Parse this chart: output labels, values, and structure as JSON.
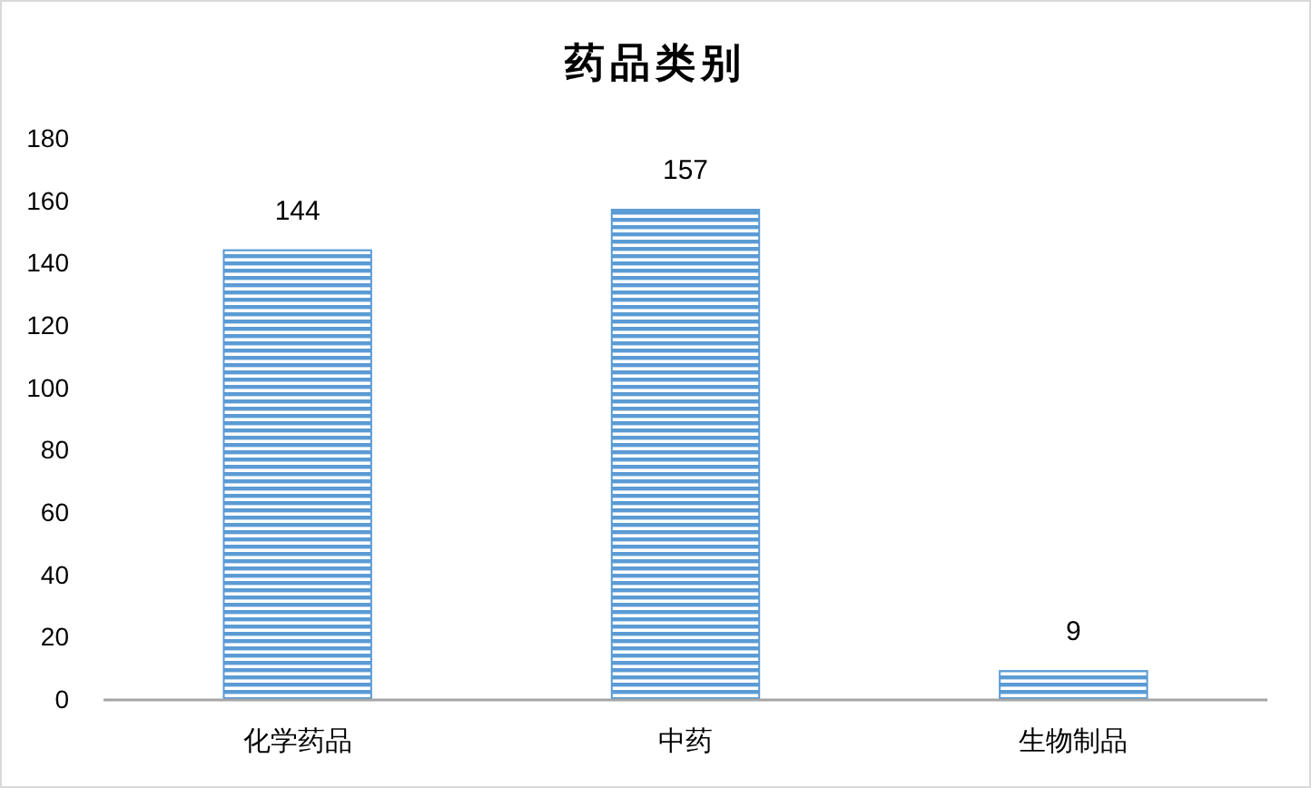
{
  "chart_data": {
    "type": "bar",
    "title": "药品类别",
    "categories": [
      "化学药品",
      "中药",
      "生物制品"
    ],
    "values": [
      144,
      157,
      9
    ],
    "color": "#5b9bd5",
    "ylim": [
      0,
      180
    ],
    "yticks": [
      0,
      20,
      40,
      60,
      80,
      100,
      120,
      140,
      160,
      180
    ],
    "data_labels": true,
    "grid": false
  }
}
